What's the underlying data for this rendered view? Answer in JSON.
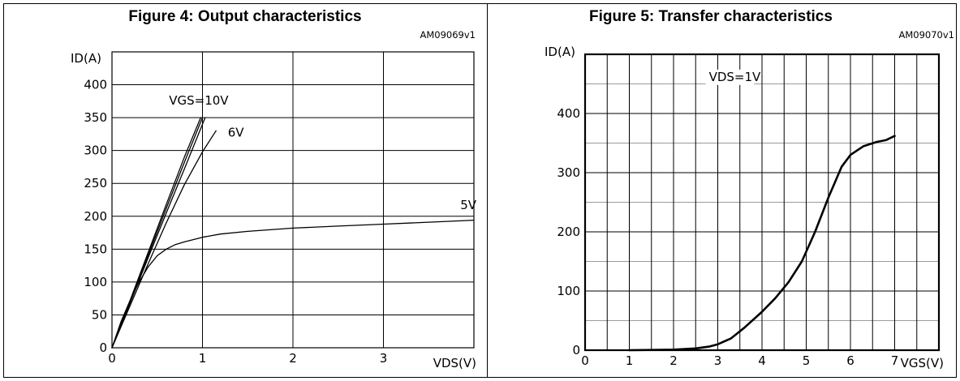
{
  "chart_data": [
    {
      "type": "line",
      "title": "Figure 4: Output characteristics",
      "code": "AM09069v1",
      "ylabel": "ID(A)",
      "xlabel": "VDS(V)",
      "xlim": [
        0,
        4
      ],
      "ylim": [
        0,
        450
      ],
      "xticks": [
        "0",
        "1",
        "2",
        "3"
      ],
      "yticks": [
        "0",
        "50",
        "100",
        "150",
        "200",
        "250",
        "300",
        "350",
        "400"
      ],
      "grid": true,
      "series": [
        {
          "name": "VGS=10V",
          "x": [
            0,
            0.2,
            0.4,
            0.6,
            0.8,
            0.98
          ],
          "y": [
            0,
            72,
            145,
            218,
            290,
            350
          ]
        },
        {
          "name": "",
          "x": [
            0,
            0.2,
            0.4,
            0.6,
            0.8,
            1.0
          ],
          "y": [
            0,
            70,
            141,
            212,
            282,
            350
          ]
        },
        {
          "name": "",
          "x": [
            0,
            0.2,
            0.4,
            0.6,
            0.8,
            1.03
          ],
          "y": [
            0,
            68,
            137,
            205,
            272,
            350
          ]
        },
        {
          "name": "6V",
          "x": [
            0,
            0.2,
            0.4,
            0.6,
            0.8,
            1.0,
            1.15
          ],
          "y": [
            0,
            64,
            128,
            190,
            248,
            298,
            330
          ]
        },
        {
          "name": "5V",
          "x": [
            0,
            0.1,
            0.2,
            0.3,
            0.4,
            0.5,
            0.6,
            0.7,
            0.8,
            1.0,
            1.2,
            1.5,
            2.0,
            2.5,
            3.0,
            3.5,
            4.0
          ],
          "y": [
            0,
            40,
            72,
            100,
            123,
            140,
            150,
            157,
            161,
            168,
            173,
            177,
            182,
            185,
            188,
            191,
            194
          ]
        }
      ],
      "curve_labels": [
        {
          "text": "VGS=10V",
          "x": 0.63,
          "y": 370
        },
        {
          "text": "6V",
          "x": 1.28,
          "y": 321
        },
        {
          "text": "5V",
          "x": 3.85,
          "y": 211
        }
      ]
    },
    {
      "type": "line",
      "title": "Figure 5: Transfer characteristics",
      "code": "AM09070v1",
      "ylabel": "ID(A)",
      "xlabel": "VGS(V)",
      "xlim": [
        0,
        8
      ],
      "ylim": [
        0,
        500
      ],
      "xticks": [
        "0",
        "1",
        "2",
        "3",
        "4",
        "5",
        "6",
        "7"
      ],
      "yticks": [
        "0",
        "100",
        "200",
        "300",
        "400"
      ],
      "grid": true,
      "series": [
        {
          "name": "VDS=1V",
          "x": [
            1.0,
            2.0,
            2.5,
            2.8,
            3.0,
            3.3,
            3.6,
            4.0,
            4.3,
            4.6,
            4.9,
            5.2,
            5.5,
            5.8,
            6.0,
            6.3,
            6.6,
            6.8,
            7.0
          ],
          "y": [
            0,
            1,
            3,
            6,
            10,
            20,
            38,
            65,
            88,
            115,
            150,
            200,
            258,
            310,
            330,
            345,
            352,
            355,
            362
          ]
        }
      ],
      "curve_labels": [
        {
          "text": "VDS=1V",
          "x": 2.8,
          "y": 455
        }
      ]
    }
  ]
}
